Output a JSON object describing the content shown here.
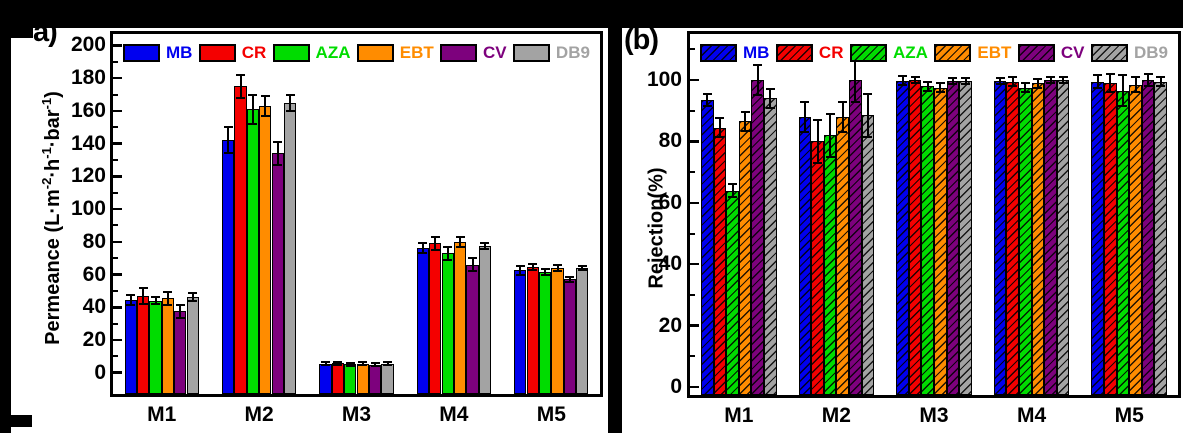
{
  "page": {
    "background": "#000000",
    "panel_background": "#FFFFFF"
  },
  "chart_data": [
    {
      "id": "a",
      "type": "bar",
      "panel_label": "a)",
      "ylabel_plain": "Permeance (L·m-2·h-1·bar-1)",
      "ylabel_segments": [
        {
          "t": "Permeance (L·m"
        },
        {
          "s": "-2"
        },
        {
          "t": "·h"
        },
        {
          "s": "-1"
        },
        {
          "t": "·bar"
        },
        {
          "s": "-1"
        },
        {
          "t": ")"
        }
      ],
      "categories": [
        "M1",
        "M2",
        "M3",
        "M4",
        "M5"
      ],
      "ylim": [
        -13,
        207
      ],
      "yticks": [
        0,
        20,
        40,
        60,
        80,
        100,
        120,
        140,
        160,
        180,
        200
      ],
      "minor_step": 10,
      "grid": false,
      "legend_position": "top-inside",
      "hatched": false,
      "series": [
        {
          "name": "MB",
          "color": "#0000EF",
          "values": [
            44.5,
            142,
            5.5,
            76,
            62.5
          ],
          "errors": [
            3,
            8,
            1,
            3,
            2.5
          ]
        },
        {
          "name": "CR",
          "color": "#F40000",
          "values": [
            47,
            175,
            5.8,
            79,
            64.5
          ],
          "errors": [
            5,
            7,
            1,
            4,
            2
          ]
        },
        {
          "name": "AZA",
          "color": "#00DC00",
          "values": [
            44,
            161,
            5.2,
            73,
            61.5
          ],
          "errors": [
            2,
            9,
            1,
            4,
            2
          ]
        },
        {
          "name": "EBT",
          "color": "#FF8C00",
          "values": [
            45.5,
            163,
            5.6,
            80,
            64
          ],
          "errors": [
            4,
            6,
            1,
            3,
            2
          ]
        },
        {
          "name": "CV",
          "color": "#7D017D",
          "values": [
            37.5,
            134,
            5.0,
            66,
            57
          ],
          "errors": [
            4,
            7,
            1,
            4,
            1.5
          ]
        },
        {
          "name": "DB9",
          "color": "#A3A3A3",
          "values": [
            46.5,
            165,
            5.5,
            77.5,
            64
          ],
          "errors": [
            2.5,
            5,
            1,
            2,
            1.5
          ]
        }
      ]
    },
    {
      "id": "b",
      "type": "bar",
      "panel_label": "(b)",
      "ylabel_plain": "Rejection(%)",
      "ylabel_segments": [
        {
          "t": "Rejection(%)"
        }
      ],
      "categories": [
        "M1",
        "M2",
        "M3",
        "M4",
        "M5"
      ],
      "ylim": [
        -2.6,
        115
      ],
      "yticks": [
        0,
        20,
        40,
        60,
        80,
        100
      ],
      "minor_step": 10,
      "grid": false,
      "legend_position": "top-inside",
      "hatched": true,
      "series": [
        {
          "name": "MB",
          "color": "#0000EF",
          "values": [
            93.5,
            88,
            99.8,
            99.8,
            99.5
          ],
          "errors": [
            2,
            5,
            1.5,
            1,
            2
          ]
        },
        {
          "name": "CR",
          "color": "#F40000",
          "values": [
            84.5,
            80,
            100,
            99.5,
            99
          ],
          "errors": [
            3,
            7,
            1,
            1.5,
            3
          ]
        },
        {
          "name": "AZA",
          "color": "#00DC00",
          "values": [
            64,
            82,
            98,
            97.5,
            96.5
          ],
          "errors": [
            2,
            7,
            1.5,
            1.5,
            5
          ]
        },
        {
          "name": "EBT",
          "color": "#FF8C00",
          "values": [
            86.5,
            88,
            97.5,
            99,
            98.5
          ],
          "errors": [
            3,
            5,
            1.5,
            1.5,
            2.5
          ]
        },
        {
          "name": "CV",
          "color": "#7D017D",
          "values": [
            100,
            100,
            99.8,
            100,
            100
          ],
          "errors": [
            5,
            7,
            1,
            1,
            2
          ]
        },
        {
          "name": "DB9",
          "color": "#A3A3A3",
          "values": [
            94,
            88.5,
            99.8,
            100,
            99.5
          ],
          "errors": [
            3,
            7,
            1,
            1,
            1.5
          ]
        }
      ]
    }
  ]
}
